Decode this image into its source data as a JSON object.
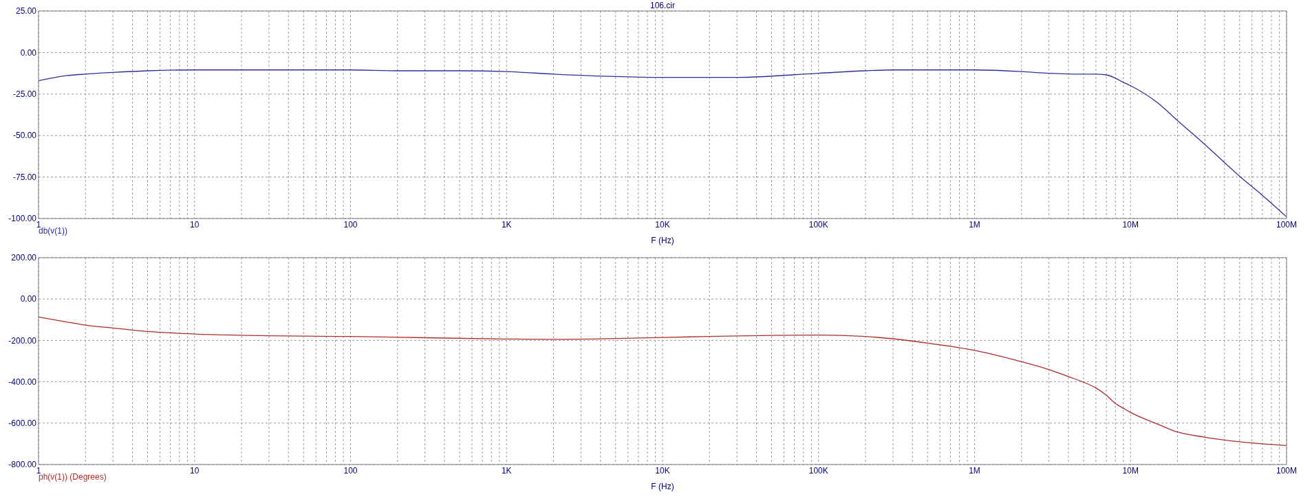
{
  "chart_data": [
    {
      "type": "line",
      "title": "106.cir",
      "xlabel": "F (Hz)",
      "log": "x",
      "xlim": [
        1,
        100000000
      ],
      "xticks": [
        1,
        {
          "value": 2,
          "label": null
        },
        {
          "value": 3,
          "label": null
        },
        {
          "value": 4,
          "label": null
        },
        {
          "value": 5,
          "label": null
        },
        {
          "value": 6,
          "label": null
        },
        {
          "value": 7,
          "label": null
        },
        {
          "value": 8,
          "label": null
        },
        {
          "value": 9,
          "label": null
        },
        10,
        {
          "value": 20,
          "label": null
        },
        {
          "value": 30,
          "label": null
        },
        {
          "value": 40,
          "label": null
        },
        {
          "value": 50,
          "label": null
        },
        {
          "value": 60,
          "label": null
        },
        {
          "value": 70,
          "label": null
        },
        {
          "value": 80,
          "label": null
        },
        {
          "value": 90,
          "label": null
        },
        100,
        {
          "value": 200,
          "label": null
        },
        {
          "value": 300,
          "label": null
        },
        {
          "value": 400,
          "label": null
        },
        {
          "value": 500,
          "label": null
        },
        {
          "value": 600,
          "label": null
        },
        {
          "value": 700,
          "label": null
        },
        {
          "value": 800,
          "label": null
        },
        {
          "value": 900,
          "label": null
        },
        {
          "value": 1000,
          "label": "1K"
        },
        {
          "value": 2000,
          "label": null
        },
        {
          "value": 3000,
          "label": null
        },
        {
          "value": 4000,
          "label": null
        },
        {
          "value": 5000,
          "label": null
        },
        {
          "value": 6000,
          "label": null
        },
        {
          "value": 7000,
          "label": null
        },
        {
          "value": 8000,
          "label": null
        },
        {
          "value": 9000,
          "label": null
        },
        {
          "value": 10000,
          "label": "10K"
        },
        {
          "value": 20000,
          "label": null
        },
        {
          "value": 30000,
          "label": null
        },
        {
          "value": 40000,
          "label": null
        },
        {
          "value": 50000,
          "label": null
        },
        {
          "value": 60000,
          "label": null
        },
        {
          "value": 70000,
          "label": null
        },
        {
          "value": 80000,
          "label": null
        },
        {
          "value": 90000,
          "label": null
        },
        {
          "value": 100000,
          "label": "100K"
        },
        {
          "value": 200000,
          "label": null
        },
        {
          "value": 300000,
          "label": null
        },
        {
          "value": 400000,
          "label": null
        },
        {
          "value": 500000,
          "label": null
        },
        {
          "value": 600000,
          "label": null
        },
        {
          "value": 700000,
          "label": null
        },
        {
          "value": 800000,
          "label": null
        },
        {
          "value": 900000,
          "label": null
        },
        {
          "value": 1000000,
          "label": "1M"
        },
        {
          "value": 2000000,
          "label": null
        },
        {
          "value": 3000000,
          "label": null
        },
        {
          "value": 4000000,
          "label": null
        },
        {
          "value": 5000000,
          "label": null
        },
        {
          "value": 6000000,
          "label": null
        },
        {
          "value": 7000000,
          "label": null
        },
        {
          "value": 8000000,
          "label": null
        },
        {
          "value": 9000000,
          "label": null
        },
        {
          "value": 10000000,
          "label": "10M"
        },
        {
          "value": 20000000,
          "label": null
        },
        {
          "value": 30000000,
          "label": null
        },
        {
          "value": 40000000,
          "label": null
        },
        {
          "value": 50000000,
          "label": null
        },
        {
          "value": 60000000,
          "label": null
        },
        {
          "value": 70000000,
          "label": null
        },
        {
          "value": 80000000,
          "label": null
        },
        {
          "value": 90000000,
          "label": null
        },
        {
          "value": 100000000,
          "label": "100M"
        }
      ],
      "ylim": [
        -100,
        25
      ],
      "yticks": [
        {
          "value": 25,
          "label": "25.00"
        },
        {
          "value": 0,
          "label": "0.00"
        },
        {
          "value": -25,
          "label": "-25.00"
        },
        {
          "value": -50,
          "label": "-50.00"
        },
        {
          "value": -75,
          "label": "-75.00"
        },
        {
          "value": -100,
          "label": "-100.00"
        }
      ],
      "grid": true,
      "legend": "bottom left",
      "x": [
        1,
        1.5,
        2,
        3,
        5,
        10,
        20,
        100,
        200,
        500,
        1000,
        2000,
        5000,
        10000,
        30000,
        100000,
        200000,
        300000,
        500000,
        1000000,
        2000000,
        3000000,
        5000000,
        6000000,
        7000000,
        8000000,
        9000000,
        10000000,
        15000000,
        20000000,
        30000000,
        50000000,
        70000000,
        100000000
      ],
      "series": [
        {
          "name": "db(v(1))",
          "color": "#2e2ea0",
          "values": [
            -17,
            -14,
            -13,
            -12,
            -11,
            -10.5,
            -10.5,
            -10.5,
            -11,
            -11,
            -11.5,
            -13,
            -14.5,
            -15,
            -15,
            -12.5,
            -11,
            -10.5,
            -10.5,
            -10.5,
            -11.5,
            -12.5,
            -13,
            -13,
            -13.5,
            -15.5,
            -18,
            -20,
            -30.5,
            -41,
            -55.5,
            -74.5,
            -86,
            -99
          ]
        }
      ]
    },
    {
      "type": "line",
      "xlabel": "F (Hz)",
      "log": "x",
      "xlim": [
        1,
        100000000
      ],
      "xticks": [
        1,
        {
          "value": 2,
          "label": null
        },
        {
          "value": 3,
          "label": null
        },
        {
          "value": 4,
          "label": null
        },
        {
          "value": 5,
          "label": null
        },
        {
          "value": 6,
          "label": null
        },
        {
          "value": 7,
          "label": null
        },
        {
          "value": 8,
          "label": null
        },
        {
          "value": 9,
          "label": null
        },
        10,
        {
          "value": 20,
          "label": null
        },
        {
          "value": 30,
          "label": null
        },
        {
          "value": 40,
          "label": null
        },
        {
          "value": 50,
          "label": null
        },
        {
          "value": 60,
          "label": null
        },
        {
          "value": 70,
          "label": null
        },
        {
          "value": 80,
          "label": null
        },
        {
          "value": 90,
          "label": null
        },
        100,
        {
          "value": 200,
          "label": null
        },
        {
          "value": 300,
          "label": null
        },
        {
          "value": 400,
          "label": null
        },
        {
          "value": 500,
          "label": null
        },
        {
          "value": 600,
          "label": null
        },
        {
          "value": 700,
          "label": null
        },
        {
          "value": 800,
          "label": null
        },
        {
          "value": 900,
          "label": null
        },
        {
          "value": 1000,
          "label": "1K"
        },
        {
          "value": 2000,
          "label": null
        },
        {
          "value": 3000,
          "label": null
        },
        {
          "value": 4000,
          "label": null
        },
        {
          "value": 5000,
          "label": null
        },
        {
          "value": 6000,
          "label": null
        },
        {
          "value": 7000,
          "label": null
        },
        {
          "value": 8000,
          "label": null
        },
        {
          "value": 9000,
          "label": null
        },
        {
          "value": 10000,
          "label": "10K"
        },
        {
          "value": 20000,
          "label": null
        },
        {
          "value": 30000,
          "label": null
        },
        {
          "value": 40000,
          "label": null
        },
        {
          "value": 50000,
          "label": null
        },
        {
          "value": 60000,
          "label": null
        },
        {
          "value": 70000,
          "label": null
        },
        {
          "value": 80000,
          "label": null
        },
        {
          "value": 90000,
          "label": null
        },
        {
          "value": 100000,
          "label": "100K"
        },
        {
          "value": 200000,
          "label": null
        },
        {
          "value": 300000,
          "label": null
        },
        {
          "value": 400000,
          "label": null
        },
        {
          "value": 500000,
          "label": null
        },
        {
          "value": 600000,
          "label": null
        },
        {
          "value": 700000,
          "label": null
        },
        {
          "value": 800000,
          "label": null
        },
        {
          "value": 900000,
          "label": null
        },
        {
          "value": 1000000,
          "label": "1M"
        },
        {
          "value": 2000000,
          "label": null
        },
        {
          "value": 3000000,
          "label": null
        },
        {
          "value": 4000000,
          "label": null
        },
        {
          "value": 5000000,
          "label": null
        },
        {
          "value": 6000000,
          "label": null
        },
        {
          "value": 7000000,
          "label": null
        },
        {
          "value": 8000000,
          "label": null
        },
        {
          "value": 9000000,
          "label": null
        },
        {
          "value": 10000000,
          "label": "10M"
        },
        {
          "value": 20000000,
          "label": null
        },
        {
          "value": 30000000,
          "label": null
        },
        {
          "value": 40000000,
          "label": null
        },
        {
          "value": 50000000,
          "label": null
        },
        {
          "value": 60000000,
          "label": null
        },
        {
          "value": 70000000,
          "label": null
        },
        {
          "value": 80000000,
          "label": null
        },
        {
          "value": 90000000,
          "label": null
        },
        {
          "value": 100000000,
          "label": "100M"
        }
      ],
      "ylim": [
        -800,
        200
      ],
      "yticks": [
        {
          "value": 200,
          "label": "200.00"
        },
        {
          "value": 0,
          "label": "0.00"
        },
        {
          "value": -200,
          "label": "-200.00"
        },
        {
          "value": -400,
          "label": "-400.00"
        },
        {
          "value": -600,
          "label": "-600.00"
        },
        {
          "value": -800,
          "label": "-800.00"
        }
      ],
      "grid": true,
      "legend": "bottom left",
      "x": [
        1,
        1.5,
        2,
        3,
        5,
        10,
        20,
        100,
        300,
        1000,
        2000,
        5000,
        10000,
        30000,
        100000,
        200000,
        300000,
        500000,
        1000000,
        2000000,
        3000000,
        4000000,
        5000000,
        6000000,
        7000000,
        8000000,
        9000000,
        10000000,
        15000000,
        20000000,
        30000000,
        50000000,
        70000000,
        100000000
      ],
      "series": [
        {
          "name": "ph(v(1)) (Degrees)",
          "color": "#b22b2b",
          "values": [
            -87,
            -110,
            -126,
            -140,
            -157,
            -169,
            -175,
            -181,
            -187,
            -193,
            -195,
            -191,
            -186,
            -178,
            -174,
            -181,
            -192,
            -213,
            -248,
            -303,
            -341,
            -375,
            -402,
            -430,
            -465,
            -505,
            -528,
            -548,
            -605,
            -643,
            -668,
            -690,
            -700,
            -708
          ]
        }
      ]
    }
  ]
}
